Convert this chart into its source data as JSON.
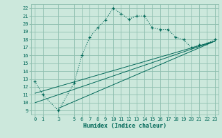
{
  "xlabel": "Humidex (Indice chaleur)",
  "bg_color": "#cce8dc",
  "grid_color": "#8fbfaf",
  "line_color": "#006858",
  "xlim": [
    -0.5,
    23.5
  ],
  "ylim": [
    8.5,
    22.5
  ],
  "xticks": [
    0,
    1,
    3,
    5,
    6,
    7,
    8,
    9,
    10,
    11,
    12,
    13,
    14,
    15,
    16,
    17,
    18,
    19,
    20,
    21,
    22,
    23
  ],
  "yticks": [
    9,
    10,
    11,
    12,
    13,
    14,
    15,
    16,
    17,
    18,
    19,
    20,
    21,
    22
  ],
  "main_x": [
    0,
    1,
    3,
    5,
    6,
    7,
    8,
    9,
    10,
    11,
    12,
    13,
    14,
    15,
    16,
    17,
    18,
    19,
    20,
    21,
    22,
    23
  ],
  "main_y": [
    12.7,
    11.0,
    9.0,
    12.5,
    16.0,
    18.3,
    19.5,
    20.5,
    22.0,
    21.3,
    20.6,
    21.0,
    21.0,
    19.5,
    19.3,
    19.3,
    18.3,
    18.0,
    17.0,
    17.3,
    17.5,
    18.0
  ],
  "line1_x": [
    0,
    23
  ],
  "line1_y": [
    10.0,
    17.8
  ],
  "line2_x": [
    0,
    23
  ],
  "line2_y": [
    11.2,
    17.8
  ],
  "line3_x": [
    3,
    23
  ],
  "line3_y": [
    9.3,
    17.8
  ],
  "figsize": [
    3.2,
    2.0
  ],
  "dpi": 100
}
